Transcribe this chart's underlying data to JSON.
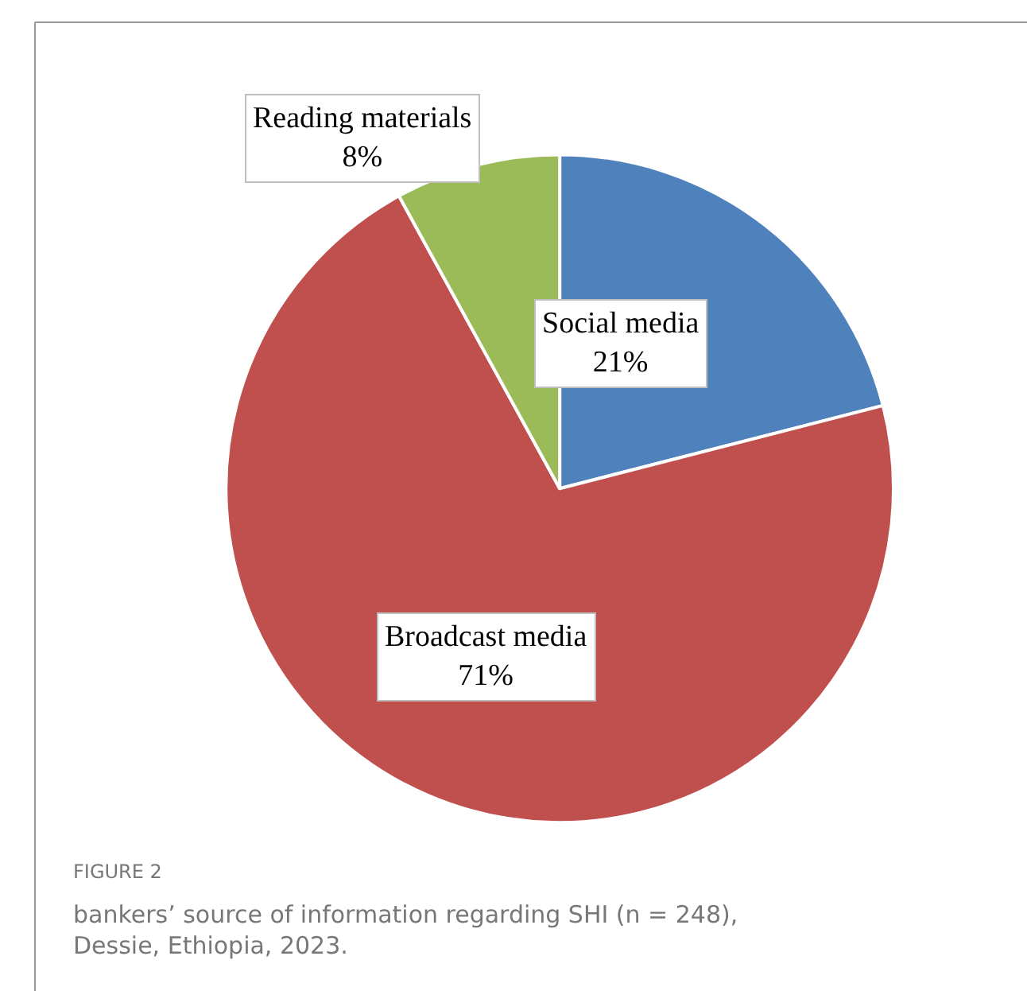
{
  "chart_data": {
    "type": "pie",
    "categories": [
      "Social media",
      "Broadcast media",
      "Reading materials"
    ],
    "values": [
      21,
      71,
      8
    ],
    "colors": [
      "#4f81bd",
      "#c0504d",
      "#9bbb59"
    ],
    "value_labels": [
      "21%",
      "71%",
      "8%"
    ],
    "legend": false,
    "annotations": [
      "FIGURE 2",
      "bankers’ source of information regarding SHI (n = 248), Dessie, Ethiopia, 2023."
    ]
  }
}
